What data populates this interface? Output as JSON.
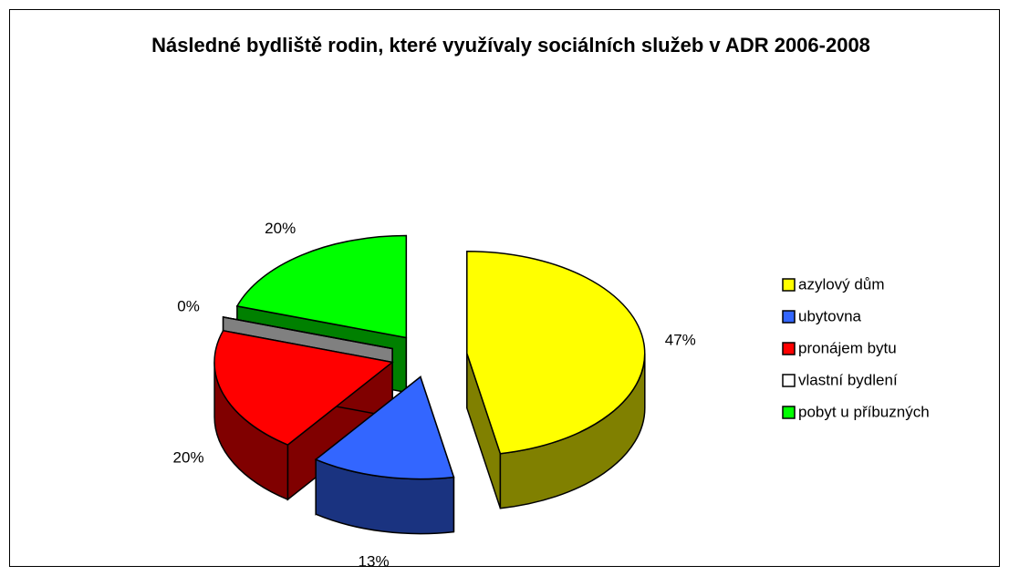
{
  "chart_data": {
    "type": "pie3d",
    "title": "Následné bydliště rodin, které využívaly sociálních služeb v ADR 2006-2008",
    "categories": [
      "azylový dům",
      "ubytovna",
      "pronájem bytu",
      "vlastní bydlení",
      "pobyt u příbuzných"
    ],
    "values": [
      47,
      13,
      20,
      0,
      20
    ],
    "value_labels": [
      "47%",
      "13%",
      "20%",
      "0%",
      "20%"
    ],
    "colors": [
      "#ffff00",
      "#3366ff",
      "#ff0000",
      "#ffffff",
      "#00ff00"
    ],
    "legend": "right"
  }
}
